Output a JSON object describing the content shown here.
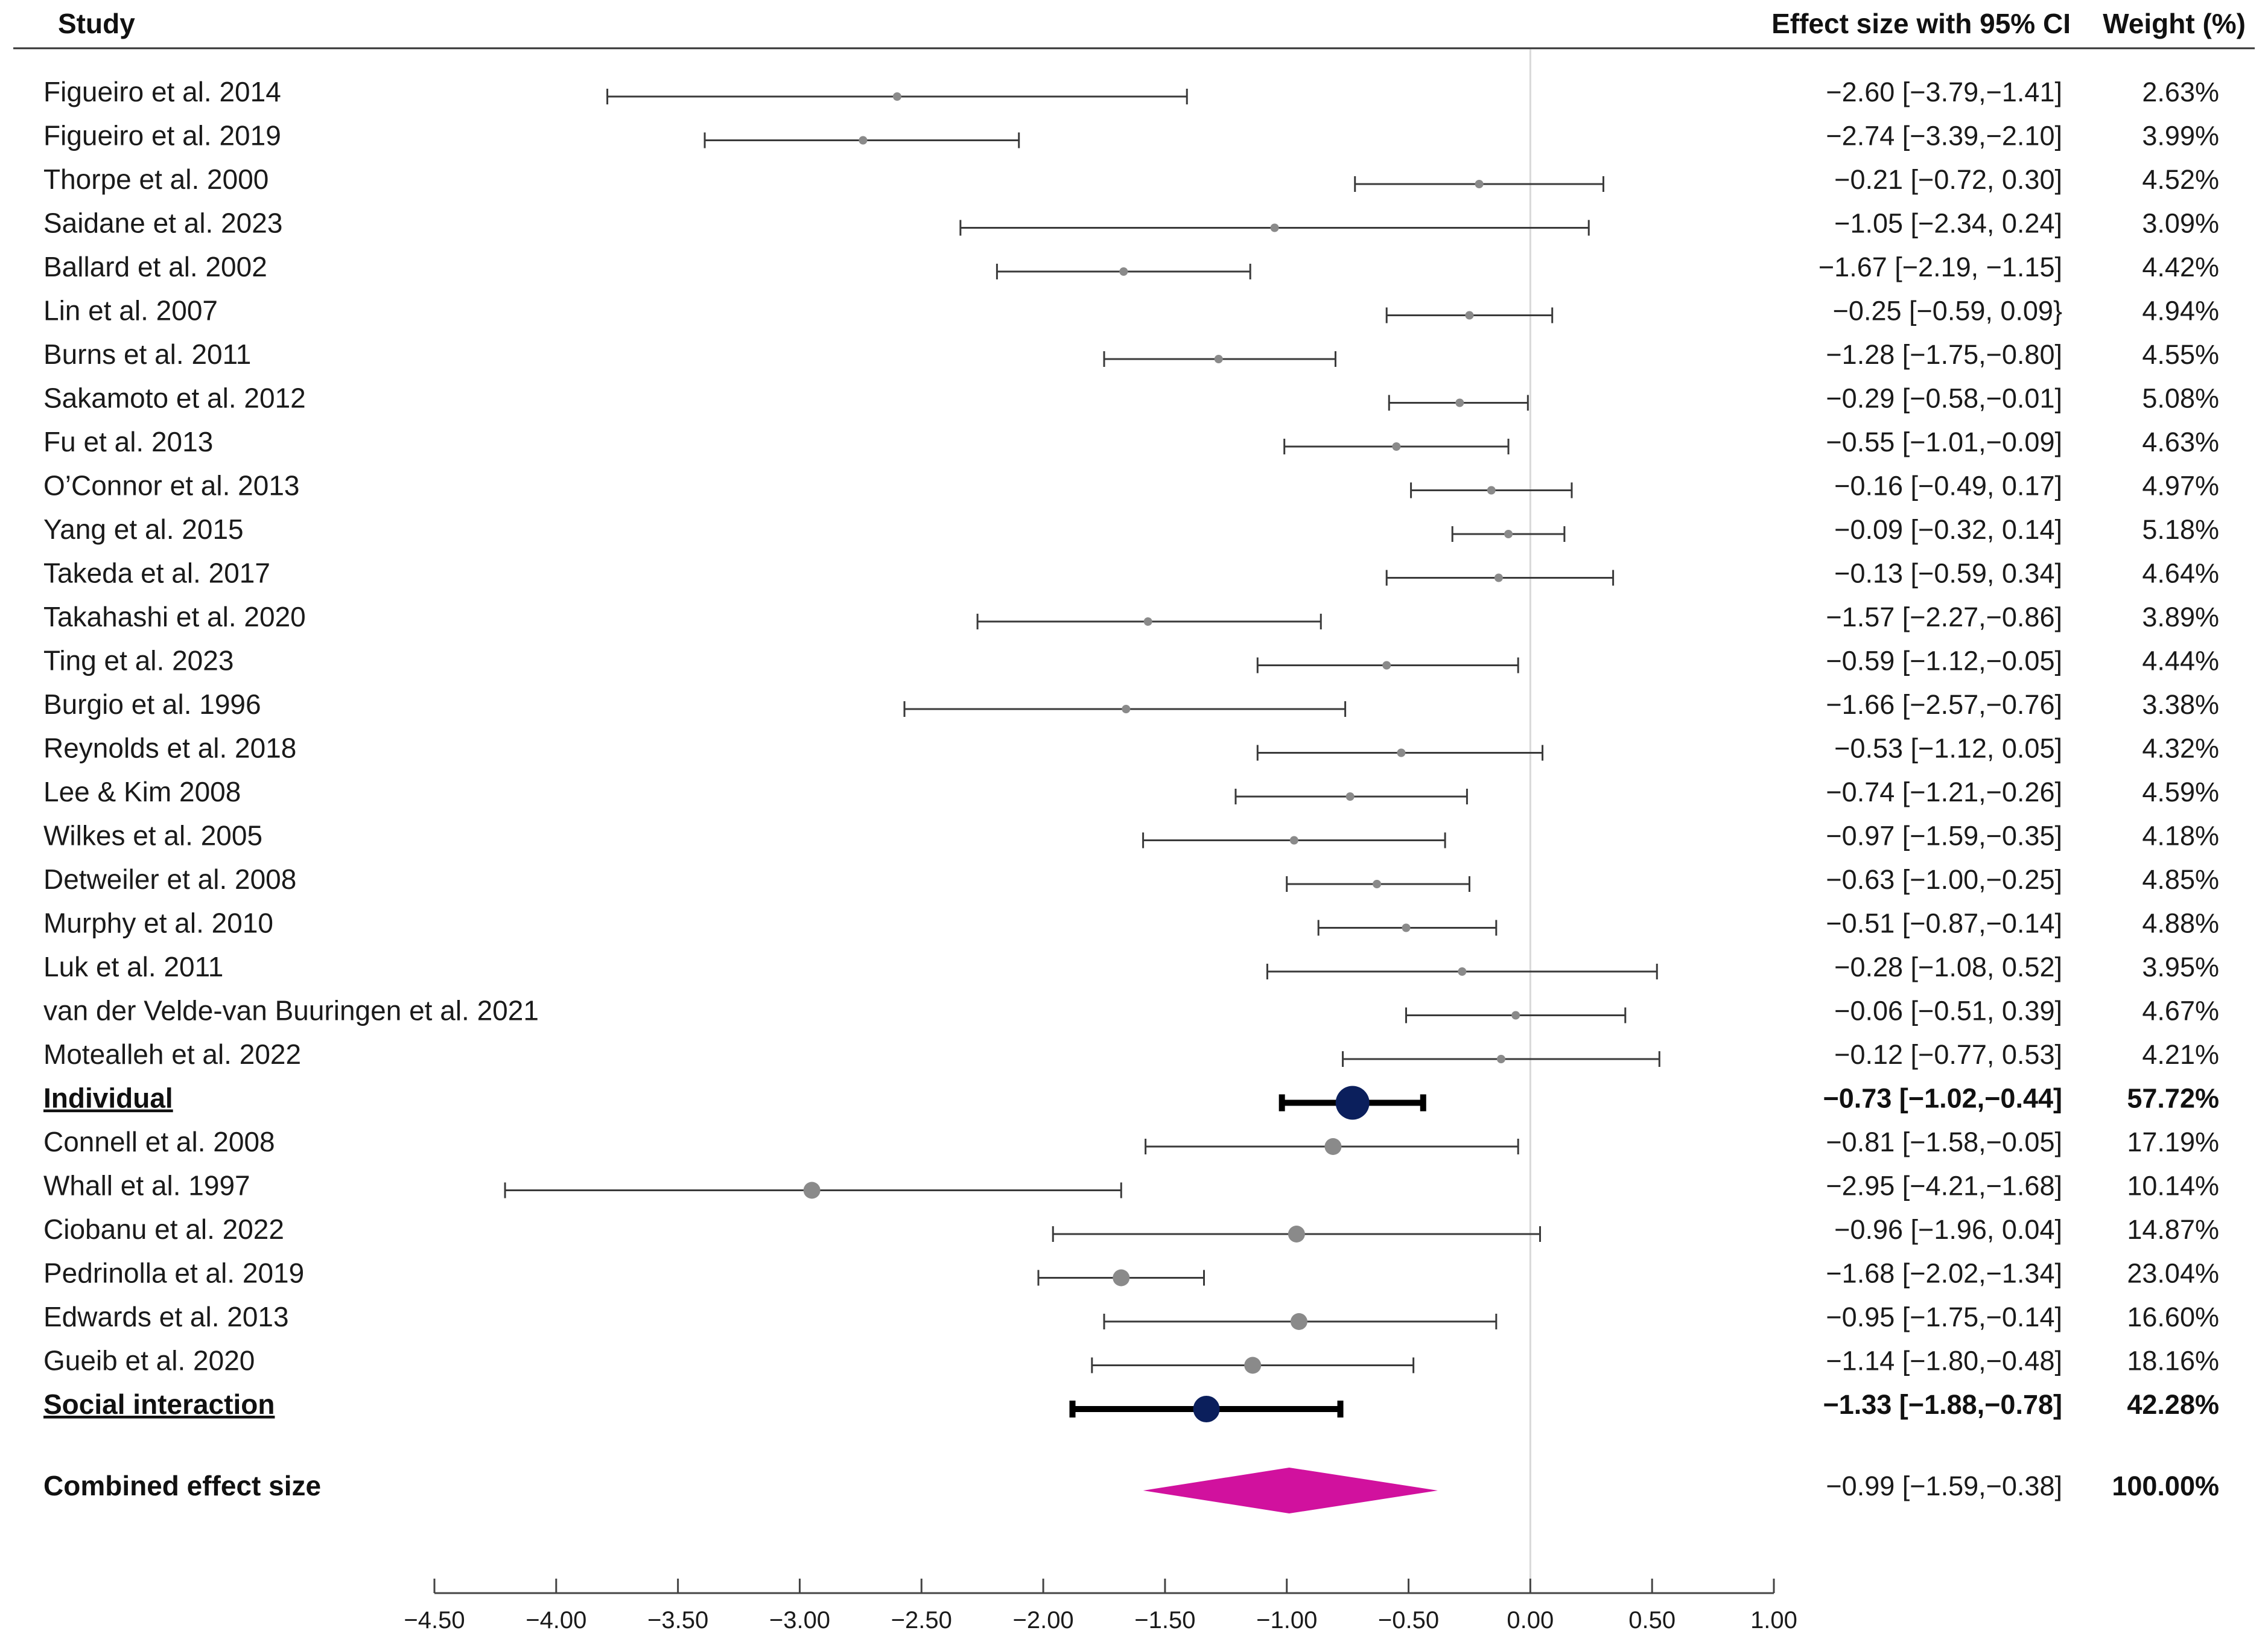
{
  "chart_data": {
    "type": "forest",
    "headers": {
      "study": "Study",
      "effect": "Effect size with 95% CI",
      "weight": "Weight (%)"
    },
    "rows": [
      {
        "label": "Figueiro et al. 2014",
        "es": -2.6,
        "lo": -3.79,
        "hi": -1.41,
        "ci_text": "−2.60 [−3.79,−1.41]",
        "weight_text": "2.63%",
        "kind": "study",
        "group": "individual"
      },
      {
        "label": "Figueiro et al. 2019",
        "es": -2.74,
        "lo": -3.39,
        "hi": -2.1,
        "ci_text": "−2.74 [−3.39,−2.10]",
        "weight_text": "3.99%",
        "kind": "study",
        "group": "individual"
      },
      {
        "label": "Thorpe et al. 2000",
        "es": -0.21,
        "lo": -0.72,
        "hi": 0.3,
        "ci_text": "−0.21 [−0.72, 0.30]",
        "weight_text": "4.52%",
        "kind": "study",
        "group": "individual"
      },
      {
        "label": "Saidane et al. 2023",
        "es": -1.05,
        "lo": -2.34,
        "hi": 0.24,
        "ci_text": "−1.05 [−2.34, 0.24]",
        "weight_text": "3.09%",
        "kind": "study",
        "group": "individual"
      },
      {
        "label": "Ballard et al. 2002",
        "es": -1.67,
        "lo": -2.19,
        "hi": -1.15,
        "ci_text": "−1.67 [−2.19, −1.15]",
        "weight_text": "4.42%",
        "kind": "study",
        "group": "individual"
      },
      {
        "label": "Lin et al. 2007",
        "es": -0.25,
        "lo": -0.59,
        "hi": 0.09,
        "ci_text": "−0.25 [−0.59, 0.09}",
        "weight_text": "4.94%",
        "kind": "study",
        "group": "individual"
      },
      {
        "label": "Burns et al. 2011",
        "es": -1.28,
        "lo": -1.75,
        "hi": -0.8,
        "ci_text": "−1.28 [−1.75,−0.80]",
        "weight_text": "4.55%",
        "kind": "study",
        "group": "individual"
      },
      {
        "label": "Sakamoto et al. 2012",
        "es": -0.29,
        "lo": -0.58,
        "hi": -0.01,
        "ci_text": "−0.29 [−0.58,−0.01]",
        "weight_text": "5.08%",
        "kind": "study",
        "group": "individual"
      },
      {
        "label": "Fu et al. 2013",
        "es": -0.55,
        "lo": -1.01,
        "hi": -0.09,
        "ci_text": "−0.55 [−1.01,−0.09]",
        "weight_text": "4.63%",
        "kind": "study",
        "group": "individual"
      },
      {
        "label": "O’Connor et al. 2013",
        "es": -0.16,
        "lo": -0.49,
        "hi": 0.17,
        "ci_text": "−0.16 [−0.49, 0.17]",
        "weight_text": "4.97%",
        "kind": "study",
        "group": "individual"
      },
      {
        "label": "Yang et al. 2015",
        "es": -0.09,
        "lo": -0.32,
        "hi": 0.14,
        "ci_text": "−0.09 [−0.32, 0.14]",
        "weight_text": "5.18%",
        "kind": "study",
        "group": "individual"
      },
      {
        "label": "Takeda et al. 2017",
        "es": -0.13,
        "lo": -0.59,
        "hi": 0.34,
        "ci_text": "−0.13 [−0.59, 0.34]",
        "weight_text": "4.64%",
        "kind": "study",
        "group": "individual"
      },
      {
        "label": "Takahashi et al. 2020",
        "es": -1.57,
        "lo": -2.27,
        "hi": -0.86,
        "ci_text": "−1.57 [−2.27,−0.86]",
        "weight_text": "3.89%",
        "kind": "study",
        "group": "individual"
      },
      {
        "label": "Ting et al. 2023",
        "es": -0.59,
        "lo": -1.12,
        "hi": -0.05,
        "ci_text": "−0.59 [−1.12,−0.05]",
        "weight_text": "4.44%",
        "kind": "study",
        "group": "individual"
      },
      {
        "label": "Burgio et al. 1996",
        "es": -1.66,
        "lo": -2.57,
        "hi": -0.76,
        "ci_text": "−1.66 [−2.57,−0.76]",
        "weight_text": "3.38%",
        "kind": "study",
        "group": "individual"
      },
      {
        "label": "Reynolds et al. 2018",
        "es": -0.53,
        "lo": -1.12,
        "hi": 0.05,
        "ci_text": "−0.53 [−1.12, 0.05]",
        "weight_text": "4.32%",
        "kind": "study",
        "group": "individual"
      },
      {
        "label": "Lee & Kim 2008",
        "es": -0.74,
        "lo": -1.21,
        "hi": -0.26,
        "ci_text": "−0.74 [−1.21,−0.26]",
        "weight_text": "4.59%",
        "kind": "study",
        "group": "individual"
      },
      {
        "label": "Wilkes et al. 2005",
        "es": -0.97,
        "lo": -1.59,
        "hi": -0.35,
        "ci_text": "−0.97 [−1.59,−0.35]",
        "weight_text": "4.18%",
        "kind": "study",
        "group": "individual"
      },
      {
        "label": "Detweiler et al. 2008",
        "es": -0.63,
        "lo": -1.0,
        "hi": -0.25,
        "ci_text": "−0.63 [−1.00,−0.25]",
        "weight_text": "4.85%",
        "kind": "study",
        "group": "individual"
      },
      {
        "label": "Murphy et al. 2010",
        "es": -0.51,
        "lo": -0.87,
        "hi": -0.14,
        "ci_text": "−0.51 [−0.87,−0.14]",
        "weight_text": "4.88%",
        "kind": "study",
        "group": "individual"
      },
      {
        "label": "Luk et al. 2011",
        "es": -0.28,
        "lo": -1.08,
        "hi": 0.52,
        "ci_text": "−0.28 [−1.08, 0.52]",
        "weight_text": "3.95%",
        "kind": "study",
        "group": "individual"
      },
      {
        "label": "van der Velde-van Buuringen et al. 2021",
        "es": -0.06,
        "lo": -0.51,
        "hi": 0.39,
        "ci_text": "−0.06 [−0.51, 0.39]",
        "weight_text": "4.67%",
        "kind": "study",
        "group": "individual"
      },
      {
        "label": "Motealleh et al.  2022",
        "es": -0.12,
        "lo": -0.77,
        "hi": 0.53,
        "ci_text": "−0.12 [−0.77, 0.53]",
        "weight_text": "4.21%",
        "kind": "study",
        "group": "individual"
      },
      {
        "label": "Individual",
        "es": -0.73,
        "lo": -1.02,
        "hi": -0.44,
        "ci_text": "−0.73 [−1.02,−0.44]",
        "weight_text": "57.72%",
        "kind": "subtotal",
        "group": "individual"
      },
      {
        "label": "Connell et al. 2008",
        "es": -0.81,
        "lo": -1.58,
        "hi": -0.05,
        "ci_text": "−0.81 [−1.58,−0.05]",
        "weight_text": "17.19%",
        "kind": "study2",
        "group": "social"
      },
      {
        "label": "Whall et al. 1997",
        "es": -2.95,
        "lo": -4.21,
        "hi": -1.68,
        "ci_text": "−2.95 [−4.21,−1.68]",
        "weight_text": "10.14%",
        "kind": "study2",
        "group": "social"
      },
      {
        "label": "Ciobanu et al. 2022",
        "es": -0.96,
        "lo": -1.96,
        "hi": 0.04,
        "ci_text": "−0.96 [−1.96, 0.04]",
        "weight_text": "14.87%",
        "kind": "study2",
        "group": "social"
      },
      {
        "label": "Pedrinolla et al. 2019",
        "es": -1.68,
        "lo": -2.02,
        "hi": -1.34,
        "ci_text": "−1.68 [−2.02,−1.34]",
        "weight_text": "23.04%",
        "kind": "study2",
        "group": "social"
      },
      {
        "label": "Edwards et al. 2013",
        "es": -0.95,
        "lo": -1.75,
        "hi": -0.14,
        "ci_text": "−0.95 [−1.75,−0.14]",
        "weight_text": "16.60%",
        "kind": "study2",
        "group": "social"
      },
      {
        "label": "Gueib et al. 2020",
        "es": -1.14,
        "lo": -1.8,
        "hi": -0.48,
        "ci_text": "−1.14 [−1.80,−0.48]",
        "weight_text": "18.16%",
        "kind": "study2",
        "group": "social"
      },
      {
        "label": "Social interaction",
        "es": -1.33,
        "lo": -1.88,
        "hi": -0.78,
        "ci_text": "−1.33 [−1.88,−0.78]",
        "weight_text": "42.28%",
        "kind": "subtotal",
        "group": "social"
      },
      {
        "label": "Combined effect size",
        "es": -0.99,
        "lo": -1.59,
        "hi": -0.38,
        "ci_text": "−0.99 [−1.59,−0.38]",
        "weight_text": "100.00%",
        "kind": "overall",
        "group": "overall"
      }
    ],
    "x_axis": {
      "range": [
        -4.5,
        1.0
      ],
      "ticks": [
        -4.5,
        -4.0,
        -3.5,
        -3.0,
        -2.5,
        -2.0,
        -1.5,
        -1.0,
        -0.5,
        0.0,
        0.5,
        1.0
      ],
      "tick_labels": [
        "−4.50",
        "−4.00",
        "−3.50",
        "−3.00",
        "−2.50",
        "−2.00",
        "−1.50",
        "−1.00",
        "−0.50",
        "0.00",
        "0.50",
        "1.00"
      ],
      "reference_line": 0
    },
    "colors": {
      "study_marker": "#8a8a8a",
      "study_line": "#3a3a3a",
      "subtotal_marker": "#0b1f5c",
      "subtotal_line": "#000000",
      "overall_diamond": "#d1119e",
      "reference_line": "#d9d9d9",
      "text": "#1a1a1a"
    }
  }
}
